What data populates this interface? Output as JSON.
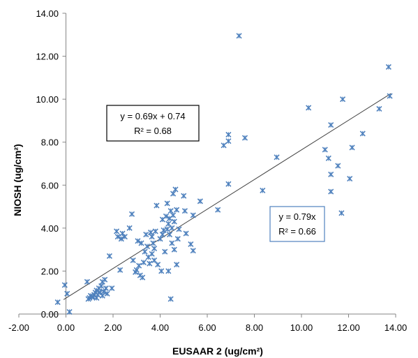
{
  "chart_data": {
    "type": "scatter",
    "title": "",
    "xlabel": "EUSAAR 2 (ug/cm²)",
    "ylabel": "NIOSH (ug/cm²)",
    "xlim": [
      -2,
      14
    ],
    "ylim": [
      0,
      14
    ],
    "xticks": [
      "-2.00",
      "0.00",
      "2.00",
      "4.00",
      "6.00",
      "8.00",
      "10.00",
      "12.00",
      "14.00"
    ],
    "yticks": [
      "0.00",
      "2.00",
      "4.00",
      "6.00",
      "8.00",
      "10.00",
      "12.00",
      "14.00"
    ],
    "grid": false,
    "legend": "none",
    "colors": {
      "marker": "#4f81bd",
      "trendline": "#404040",
      "box2_border": "#4f81bd",
      "box1_border": "#000000"
    },
    "annotations": [
      {
        "line1": "y = 0.69x + 0.74",
        "line2": "R² = 0.68"
      },
      {
        "line1": "y = 0.79x",
        "line2": "R² = 0.66"
      }
    ],
    "trendline": {
      "slope": 0.69,
      "intercept": 0.74,
      "x_range": [
        -0.1,
        13.8
      ]
    },
    "series": [
      {
        "marker": "x",
        "points": [
          [
            -0.35,
            0.55
          ],
          [
            -0.05,
            1.35
          ],
          [
            0.05,
            0.95
          ],
          [
            0.15,
            0.1
          ],
          [
            0.9,
            1.5
          ],
          [
            0.95,
            0.7
          ],
          [
            1.0,
            0.75
          ],
          [
            1.05,
            0.85
          ],
          [
            1.1,
            0.8
          ],
          [
            1.15,
            0.8
          ],
          [
            1.2,
            0.9
          ],
          [
            1.25,
            1.0
          ],
          [
            1.3,
            0.75
          ],
          [
            1.3,
            1.1
          ],
          [
            1.35,
            0.9
          ],
          [
            1.4,
            1.2
          ],
          [
            1.45,
            1.0
          ],
          [
            1.5,
            1.3
          ],
          [
            1.55,
            0.85
          ],
          [
            1.55,
            1.5
          ],
          [
            1.6,
            1.05
          ],
          [
            1.65,
            1.6
          ],
          [
            1.7,
            1.2
          ],
          [
            1.75,
            0.95
          ],
          [
            1.85,
            2.7
          ],
          [
            1.95,
            1.2
          ],
          [
            2.15,
            3.85
          ],
          [
            2.2,
            3.6
          ],
          [
            2.3,
            2.05
          ],
          [
            2.35,
            3.5
          ],
          [
            2.4,
            3.75
          ],
          [
            2.5,
            3.6
          ],
          [
            2.7,
            4.0
          ],
          [
            2.8,
            4.65
          ],
          [
            2.85,
            2.5
          ],
          [
            2.95,
            1.95
          ],
          [
            3.0,
            2.05
          ],
          [
            3.05,
            3.4
          ],
          [
            3.1,
            2.25
          ],
          [
            3.15,
            1.8
          ],
          [
            3.2,
            3.3
          ],
          [
            3.25,
            1.7
          ],
          [
            3.3,
            2.4
          ],
          [
            3.35,
            2.9
          ],
          [
            3.4,
            3.7
          ],
          [
            3.45,
            3.15
          ],
          [
            3.5,
            2.65
          ],
          [
            3.55,
            2.35
          ],
          [
            3.6,
            3.8
          ],
          [
            3.65,
            2.8
          ],
          [
            3.65,
            3.6
          ],
          [
            3.7,
            3.3
          ],
          [
            3.75,
            2.5
          ],
          [
            3.75,
            3.05
          ],
          [
            3.8,
            3.85
          ],
          [
            3.85,
            5.05
          ],
          [
            3.9,
            2.3
          ],
          [
            4.0,
            3.5
          ],
          [
            4.05,
            2.0
          ],
          [
            4.1,
            4.4
          ],
          [
            4.1,
            3.7
          ],
          [
            4.15,
            3.9
          ],
          [
            4.2,
            2.9
          ],
          [
            4.25,
            4.55
          ],
          [
            4.3,
            3.95
          ],
          [
            4.3,
            5.15
          ],
          [
            4.35,
            4.2
          ],
          [
            4.35,
            2.0
          ],
          [
            4.4,
            4.45
          ],
          [
            4.4,
            3.7
          ],
          [
            4.45,
            4.8
          ],
          [
            4.45,
            0.7
          ],
          [
            4.5,
            3.3
          ],
          [
            4.5,
            4.0
          ],
          [
            4.55,
            5.6
          ],
          [
            4.55,
            4.6
          ],
          [
            4.6,
            3.0
          ],
          [
            4.6,
            4.3
          ],
          [
            4.65,
            5.8
          ],
          [
            4.7,
            4.85
          ],
          [
            4.7,
            2.3
          ],
          [
            4.75,
            3.5
          ],
          [
            4.8,
            3.95
          ],
          [
            5.0,
            5.5
          ],
          [
            5.05,
            4.8
          ],
          [
            5.1,
            3.75
          ],
          [
            5.3,
            3.25
          ],
          [
            5.4,
            2.95
          ],
          [
            5.4,
            4.6
          ],
          [
            5.7,
            5.25
          ],
          [
            6.45,
            4.85
          ],
          [
            6.7,
            7.85
          ],
          [
            6.9,
            8.05
          ],
          [
            6.9,
            8.35
          ],
          [
            6.9,
            6.05
          ],
          [
            7.35,
            12.95
          ],
          [
            7.6,
            8.2
          ],
          [
            8.35,
            5.75
          ],
          [
            8.95,
            7.3
          ],
          [
            10.3,
            9.6
          ],
          [
            11.0,
            7.65
          ],
          [
            11.15,
            7.25
          ],
          [
            11.25,
            8.8
          ],
          [
            11.25,
            6.5
          ],
          [
            11.25,
            5.7
          ],
          [
            11.55,
            6.9
          ],
          [
            11.7,
            4.7
          ],
          [
            11.75,
            10.0
          ],
          [
            12.05,
            6.3
          ],
          [
            12.15,
            7.75
          ],
          [
            12.6,
            8.4
          ],
          [
            13.3,
            9.55
          ],
          [
            13.7,
            11.5
          ],
          [
            13.75,
            10.15
          ]
        ]
      }
    ]
  }
}
